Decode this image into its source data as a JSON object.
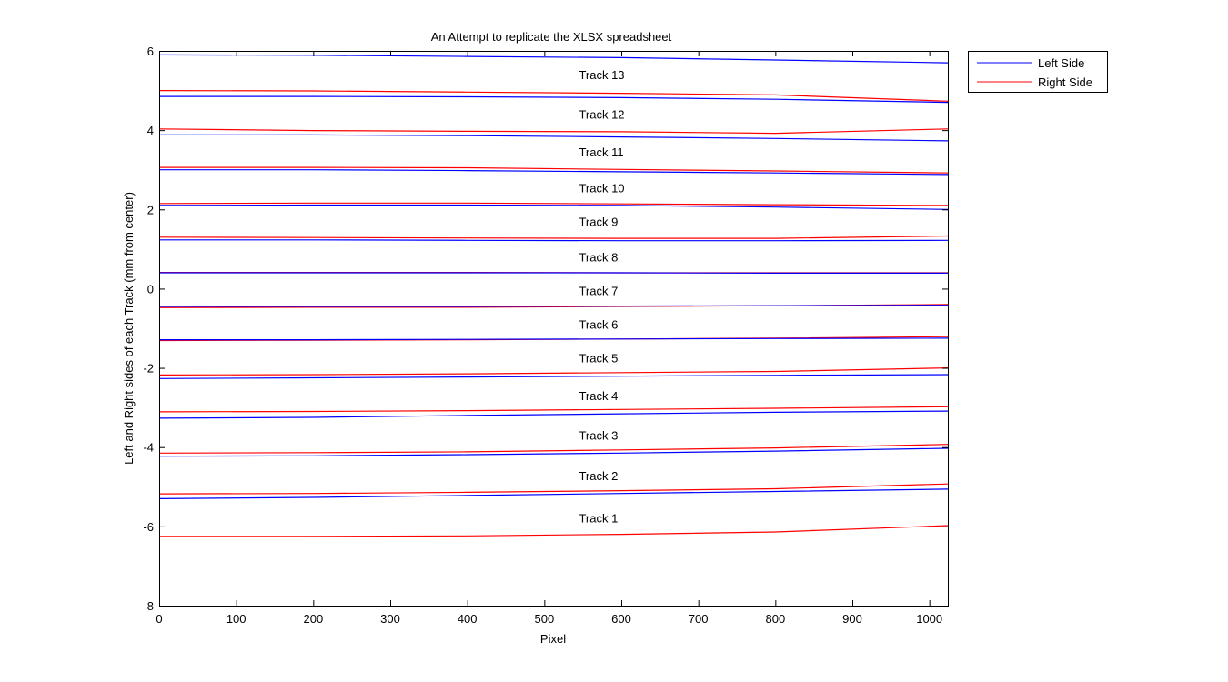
{
  "chart_data": {
    "type": "line",
    "title": "An Attempt to replicate the XLSX spreadsheet",
    "xlabel": "Pixel",
    "ylabel": "Left and Right sides of each Track (mm from center)",
    "xlim": [
      0,
      1024
    ],
    "ylim": [
      -8,
      6
    ],
    "xticks": [
      0,
      100,
      200,
      300,
      400,
      500,
      600,
      700,
      800,
      900,
      1000
    ],
    "yticks": [
      -8,
      -6,
      -4,
      -2,
      0,
      2,
      4,
      6
    ],
    "grid": false,
    "legend": {
      "placement": "outside-top-right",
      "entries": [
        {
          "label": "Left Side",
          "color": "#0000ff"
        },
        {
          "label": "Right Side",
          "color": "#ff0000"
        }
      ]
    },
    "x": [
      0,
      200,
      400,
      600,
      800,
      1024
    ],
    "series": [
      {
        "side": "Left Side",
        "color": "#0000ff",
        "values": [
          5.9,
          5.89,
          5.86,
          5.83,
          5.77,
          5.7
        ]
      },
      {
        "side": "Right Side",
        "color": "#ff0000",
        "values": [
          5.0,
          4.99,
          4.96,
          4.93,
          4.89,
          4.73
        ]
      },
      {
        "side": "Left Side",
        "color": "#0000ff",
        "values": [
          4.85,
          4.85,
          4.84,
          4.82,
          4.78,
          4.7
        ]
      },
      {
        "side": "Right Side",
        "color": "#ff0000",
        "values": [
          4.03,
          3.99,
          3.97,
          3.96,
          3.92,
          4.03
        ]
      },
      {
        "side": "Left Side",
        "color": "#0000ff",
        "values": [
          3.88,
          3.88,
          3.86,
          3.83,
          3.79,
          3.73
        ]
      },
      {
        "side": "Right Side",
        "color": "#ff0000",
        "values": [
          3.06,
          3.06,
          3.05,
          3.01,
          2.97,
          2.92
        ]
      },
      {
        "side": "Left Side",
        "color": "#0000ff",
        "values": [
          3.0,
          3.0,
          2.98,
          2.95,
          2.92,
          2.88
        ]
      },
      {
        "side": "Right Side",
        "color": "#ff0000",
        "values": [
          2.15,
          2.16,
          2.16,
          2.14,
          2.12,
          2.1
        ]
      },
      {
        "side": "Left Side",
        "color": "#0000ff",
        "values": [
          2.1,
          2.11,
          2.11,
          2.1,
          2.06,
          2.0
        ]
      },
      {
        "side": "Right Side",
        "color": "#ff0000",
        "values": [
          1.3,
          1.29,
          1.28,
          1.27,
          1.27,
          1.33
        ]
      },
      {
        "side": "Left Side",
        "color": "#0000ff",
        "values": [
          1.23,
          1.23,
          1.22,
          1.21,
          1.21,
          1.22
        ]
      },
      {
        "side": "Right Side",
        "color": "#ff0000",
        "values": [
          0.41,
          0.41,
          0.41,
          0.4,
          0.4,
          0.4
        ]
      },
      {
        "side": "Left Side",
        "color": "#0000ff",
        "values": [
          0.4,
          0.4,
          0.4,
          0.4,
          0.39,
          0.39
        ]
      },
      {
        "side": "Right Side",
        "color": "#ff0000",
        "values": [
          -0.48,
          -0.47,
          -0.47,
          -0.45,
          -0.43,
          -0.4
        ]
      },
      {
        "side": "Left Side",
        "color": "#0000ff",
        "values": [
          -0.45,
          -0.45,
          -0.45,
          -0.44,
          -0.43,
          -0.42
        ]
      },
      {
        "side": "Right Side",
        "color": "#ff0000",
        "values": [
          -1.31,
          -1.3,
          -1.29,
          -1.27,
          -1.25,
          -1.21
        ]
      },
      {
        "side": "Left Side",
        "color": "#0000ff",
        "values": [
          -1.29,
          -1.29,
          -1.28,
          -1.27,
          -1.26,
          -1.25
        ]
      },
      {
        "side": "Right Side",
        "color": "#ff0000",
        "values": [
          -2.18,
          -2.17,
          -2.15,
          -2.12,
          -2.09,
          -2.0
        ]
      },
      {
        "side": "Left Side",
        "color": "#0000ff",
        "values": [
          -2.27,
          -2.25,
          -2.23,
          -2.21,
          -2.19,
          -2.17
        ]
      },
      {
        "side": "Right Side",
        "color": "#ff0000",
        "values": [
          -3.11,
          -3.1,
          -3.08,
          -3.05,
          -3.02,
          -2.98
        ]
      },
      {
        "side": "Left Side",
        "color": "#0000ff",
        "values": [
          -3.27,
          -3.25,
          -3.2,
          -3.16,
          -3.12,
          -3.09
        ]
      },
      {
        "side": "Right Side",
        "color": "#ff0000",
        "values": [
          -4.15,
          -4.14,
          -4.12,
          -4.07,
          -4.02,
          -3.93
        ]
      },
      {
        "side": "Left Side",
        "color": "#0000ff",
        "values": [
          -4.23,
          -4.22,
          -4.19,
          -4.15,
          -4.1,
          -4.03
        ]
      },
      {
        "side": "Right Side",
        "color": "#ff0000",
        "values": [
          -5.18,
          -5.17,
          -5.14,
          -5.1,
          -5.05,
          -4.93
        ]
      },
      {
        "side": "Left Side",
        "color": "#0000ff",
        "values": [
          -5.3,
          -5.27,
          -5.22,
          -5.17,
          -5.12,
          -5.06
        ]
      },
      {
        "side": "Right Side",
        "color": "#ff0000",
        "values": [
          -6.25,
          -6.25,
          -6.24,
          -6.2,
          -6.14,
          -5.98
        ]
      }
    ],
    "annotations": [
      {
        "text": "Track 13",
        "x": 545,
        "y": 5.4
      },
      {
        "text": "Track 12",
        "x": 545,
        "y": 4.4
      },
      {
        "text": "Track 11",
        "x": 545,
        "y": 3.45
      },
      {
        "text": "Track 10",
        "x": 545,
        "y": 2.55
      },
      {
        "text": "Track 9",
        "x": 545,
        "y": 1.7
      },
      {
        "text": "Track 8",
        "x": 545,
        "y": 0.8
      },
      {
        "text": "Track 7",
        "x": 545,
        "y": -0.05
      },
      {
        "text": "Track 6",
        "x": 545,
        "y": -0.9
      },
      {
        "text": "Track 5",
        "x": 545,
        "y": -1.75
      },
      {
        "text": "Track 4",
        "x": 545,
        "y": -2.7
      },
      {
        "text": "Track 3",
        "x": 545,
        "y": -3.7
      },
      {
        "text": "Track 2",
        "x": 545,
        "y": -4.72
      },
      {
        "text": "Track 1",
        "x": 545,
        "y": -5.78
      }
    ]
  }
}
